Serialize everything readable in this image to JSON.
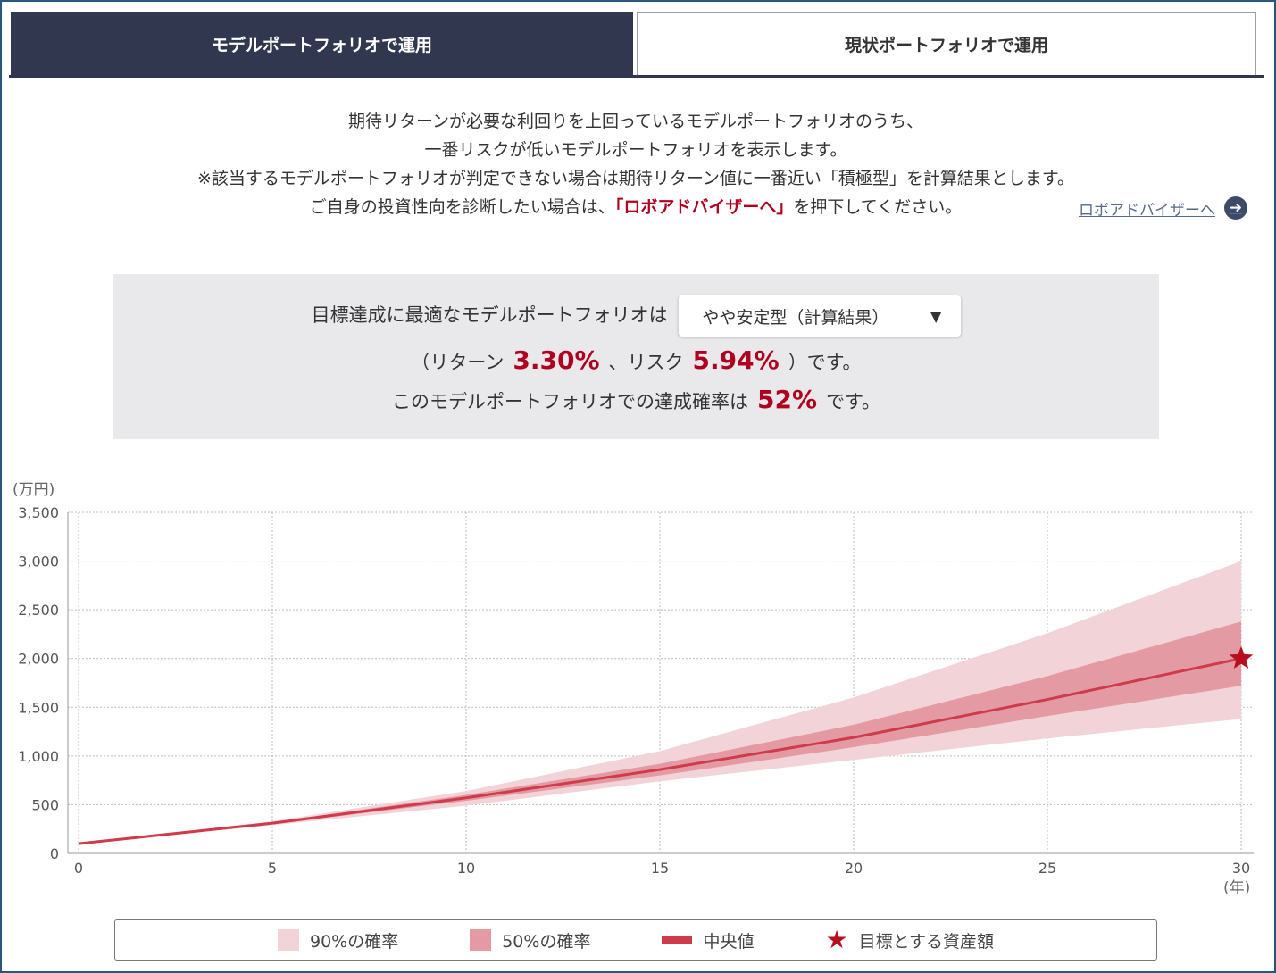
{
  "tabs": {
    "model": "モデルポートフォリオで運用",
    "current": "現状ポートフォリオで運用"
  },
  "description": {
    "line1": "期待リターンが必要な利回りを上回っているモデルポートフォリオのうち、",
    "line2": "一番リスクが低いモデルポートフォリオを表示します。",
    "line3": "※該当するモデルポートフォリオが判定できない場合は期待リターン値に一番近い「積極型」を計算結果とします。",
    "line4_pre": "ご自身の投資性向を診断したい場合は、",
    "line4_red": "「ロボアドバイザーへ」",
    "line4_post": "を押下してください。"
  },
  "robo_link": "ロボアドバイザーへ",
  "result": {
    "label": "目標達成に最適なモデルポートフォリオは",
    "selected": "やや安定型（計算結果）",
    "return_pre": "（リターン",
    "return_value": "3.30%",
    "risk_pre": "、リスク",
    "risk_value": "5.94%",
    "risk_post": "）です。",
    "prob_pre": "このモデルポートフォリオでの達成確率は",
    "prob_value": "52%",
    "prob_post": "です。"
  },
  "chart_data": {
    "type": "area",
    "y_unit": "(万円)",
    "x_unit": "(年)",
    "xlim": [
      0,
      30
    ],
    "ylim": [
      0,
      3500
    ],
    "x_ticks": [
      "0",
      "5",
      "10",
      "15",
      "20",
      "25",
      "30"
    ],
    "y_ticks": [
      "0",
      "500",
      "1,000",
      "1,500",
      "2,000",
      "2,500",
      "3,000",
      "3,500"
    ],
    "x": [
      0,
      5,
      10,
      15,
      20,
      25,
      30
    ],
    "series": [
      {
        "name": "90%の確率",
        "color": "#f2d3d7",
        "lower": [
          100,
          290,
          490,
          740,
          960,
          1180,
          1380
        ],
        "upper": [
          100,
          330,
          640,
          1050,
          1600,
          2260,
          3000
        ]
      },
      {
        "name": "50%の確率",
        "color": "#e39aa3",
        "lower": [
          100,
          300,
          540,
          800,
          1090,
          1410,
          1720
        ],
        "upper": [
          100,
          320,
          600,
          920,
          1320,
          1820,
          2380
        ]
      },
      {
        "name": "中央値",
        "color": "#cf3b4a",
        "values": [
          100,
          310,
          570,
          860,
          1190,
          1580,
          2000
        ]
      }
    ],
    "target": {
      "name": "目標とする資産額",
      "x": 30,
      "y": 2000,
      "color": "#b80f1f"
    },
    "grid": true
  },
  "legend": {
    "p90": "90%の確率",
    "p50": "50%の確率",
    "median": "中央値",
    "target": "目標とする資産額"
  }
}
